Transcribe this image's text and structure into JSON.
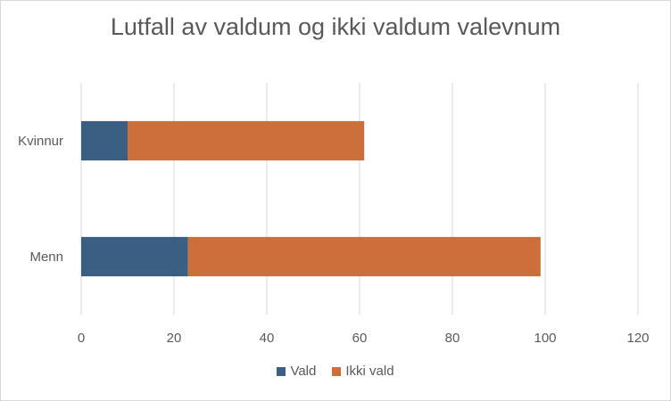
{
  "chart_data": {
    "type": "bar",
    "orientation": "horizontal",
    "stacked": true,
    "title": "Lutfall av valdum og ikki valdum valevnum",
    "categories": [
      "Kvinnur",
      "Menn"
    ],
    "series": [
      {
        "name": "Vald",
        "values": [
          10,
          23
        ],
        "color": "#3a5f82"
      },
      {
        "name": "Ikki vald",
        "values": [
          51,
          76
        ],
        "color": "#cc6f3a"
      }
    ],
    "xlim": [
      0,
      120
    ],
    "xticks": [
      0,
      20,
      40,
      60,
      80,
      100,
      120
    ],
    "grid": "vertical",
    "legend": "bottom",
    "xlabel": "",
    "ylabel": ""
  }
}
